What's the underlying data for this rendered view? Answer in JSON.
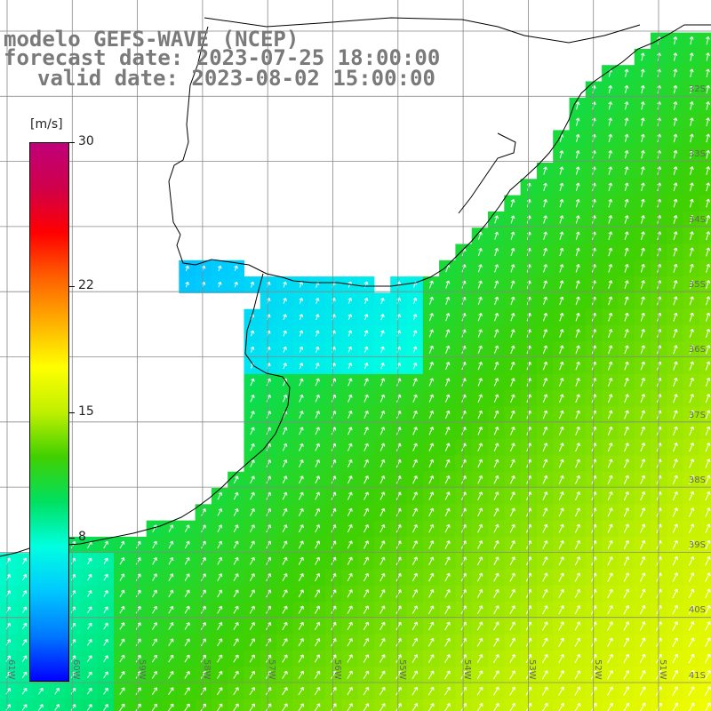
{
  "title": {
    "line1": "modelo GEFS-WAVE (NCEP)",
    "line2": "forecast date: 2023-07-25 18:00:00",
    "line3": "valid date: 2023-08-02 15:00:00"
  },
  "colorbar": {
    "unit": "[m/s]",
    "min": 0,
    "max": 30,
    "ticks": [
      {
        "value": 30,
        "label": "30"
      },
      {
        "value": 22,
        "label": "22"
      },
      {
        "value": 15,
        "label": "15"
      },
      {
        "value": 8,
        "label": "8"
      }
    ],
    "colors": [
      "#0000ff",
      "#0078ff",
      "#00c8ff",
      "#00ffe0",
      "#00e060",
      "#40d000",
      "#c0f000",
      "#ffff00",
      "#ffb000",
      "#ff6000",
      "#ff0000",
      "#d0004a",
      "#c0007a"
    ]
  },
  "map": {
    "lon_range": [
      -60,
      -51
    ],
    "lat_range": [
      -41.3,
      -31.3
    ],
    "lat_labels": [
      "32S",
      "33S",
      "34S",
      "35S",
      "36S",
      "37S",
      "38S",
      "39S",
      "40S",
      "41S"
    ],
    "lon_labels": [
      "61W",
      "60W",
      "59W",
      "58W",
      "57W",
      "56W",
      "55W",
      "54W",
      "53W",
      "52W",
      "51W"
    ],
    "land_color": "#ffffff",
    "grid_color": "#888888",
    "coast_color": "#000000",
    "arrow_color": "#ffffff",
    "field": {
      "description_units": "m/s",
      "min_value": 3,
      "max_value": 17,
      "arrow_direction": "toward north-northeast"
    }
  }
}
